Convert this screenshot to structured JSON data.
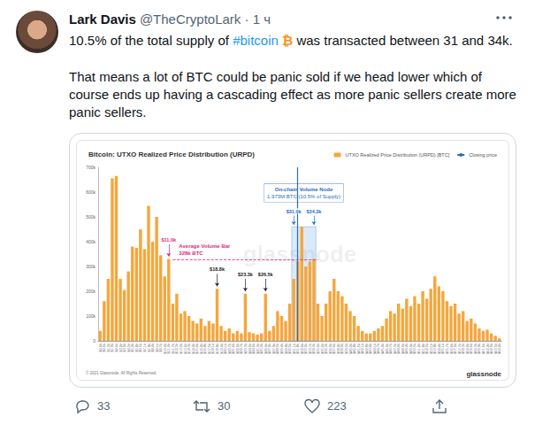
{
  "tweet": {
    "name": "Lark Davis",
    "meta": "@TheCryptoLark · 1 ч",
    "paragraphs": [
      "10.5% of the total supply of #bitcoin ₿ was transacted between 31 and 34k.",
      "That means a lot of BTC could be panic sold if we head lower which of course ends up having a cascading effect as more panic sellers create more panic sellers."
    ],
    "hashtag": "#bitcoin",
    "emoji": "₿",
    "replies": 33,
    "retweets": 30,
    "likes": 223
  },
  "chart_data": {
    "type": "bar",
    "title": "Bitcoin: UTXO Realized Price Distribution (URPD)",
    "categories": [
      "$0.0k",
      "$0.6k",
      "$1.3k",
      "$1.9k",
      "$2.6k",
      "$3.2k",
      "$3.9k",
      "$4.5k",
      "$5.2k",
      "$5.8k",
      "$6.5k",
      "$7.1k",
      "$7.8k",
      "$8.4k",
      "$9.1k",
      "$9.7k",
      "$10.4k",
      "$11.0k",
      "$11.7k",
      "$12.3k",
      "$13.0k",
      "$13.6k",
      "$14.3k",
      "$14.9k",
      "$15.6k",
      "$16.2k",
      "$16.8k",
      "$17.5k",
      "$18.1k",
      "$18.8k",
      "$19.4k",
      "$20.1k",
      "$20.7k",
      "$21.4k",
      "$22.0k",
      "$22.7k",
      "$23.3k",
      "$24.0k",
      "$24.6k",
      "$25.3k",
      "$25.9k",
      "$26.6k",
      "$27.2k",
      "$27.9k",
      "$28.5k",
      "$29.2k",
      "$29.8k",
      "$30.5k",
      "$31.1k",
      "$31.8k",
      "$32.4k",
      "$33.0k",
      "$33.7k",
      "$34.3k",
      "$35.0k",
      "$35.6k",
      "$36.3k",
      "$36.9k",
      "$37.6k",
      "$38.2k",
      "$38.9k",
      "$39.5k",
      "$40.2k",
      "$40.8k",
      "$41.5k",
      "$42.1k",
      "$42.8k",
      "$43.4k",
      "$44.1k",
      "$44.7k",
      "$45.4k",
      "$46.0k",
      "$46.7k",
      "$47.3k",
      "$48.0k",
      "$48.6k",
      "$49.2k",
      "$49.9k",
      "$50.5k",
      "$51.2k",
      "$51.8k",
      "$52.5k",
      "$53.1k",
      "$53.8k",
      "$54.4k",
      "$55.1k",
      "$55.7k",
      "$56.4k",
      "$57.0k",
      "$57.7k",
      "$58.3k",
      "$59.0k",
      "$59.6k",
      "$60.3k",
      "$60.9k",
      "$61.6k",
      "$62.2k",
      "$62.9k",
      "$63.5k",
      "$64.2k"
    ],
    "series": [
      {
        "name": "UTXO Realized Price Distribution (URPD) [BTC]",
        "color": "#f6a63c",
        "values": [
          40000,
          160000,
          250000,
          655000,
          665000,
          250000,
          205000,
          280000,
          380000,
          375000,
          450000,
          370000,
          545000,
          400000,
          500000,
          345000,
          260000,
          330000,
          150000,
          190000,
          110000,
          120000,
          100000,
          80000,
          70000,
          90000,
          60000,
          80000,
          70000,
          210000,
          60000,
          40000,
          50000,
          30000,
          40000,
          30000,
          190000,
          35000,
          30000,
          25000,
          30000,
          190000,
          40000,
          60000,
          120000,
          100000,
          80000,
          150000,
          250000,
          320000,
          460000,
          300000,
          320000,
          330000,
          150000,
          100000,
          150000,
          200000,
          250000,
          200000,
          180000,
          150000,
          120000,
          100000,
          60000,
          40000,
          30000,
          30000,
          40000,
          50000,
          60000,
          90000,
          120000,
          110000,
          150000,
          130000,
          170000,
          140000,
          180000,
          150000,
          200000,
          170000,
          210000,
          260000,
          220000,
          200000,
          160000,
          140000,
          150000,
          110000,
          120000,
          80000,
          90000,
          70000,
          50000,
          40000,
          45000,
          30000,
          20000,
          10000
        ]
      }
    ],
    "closing_price": {
      "name": "Closing price",
      "color": "#2c6fbb",
      "category": "$31.8k"
    },
    "ylim": [
      0,
      700000
    ],
    "yticks": [
      0,
      {
        "value": 100000,
        "label": "100k"
      },
      {
        "value": 200000,
        "label": "200k"
      },
      {
        "value": 300000,
        "label": "300k"
      },
      {
        "value": 400000,
        "label": "400k"
      },
      {
        "value": 500000,
        "label": "500k"
      },
      {
        "value": 600000,
        "label": "600k"
      },
      {
        "value": 700000,
        "label": "700k"
      }
    ],
    "grid": false,
    "legend": "top-right",
    "annotations": [
      {
        "label": "$11.0k",
        "category": "$11.0k",
        "color": "#e4267f"
      },
      {
        "label": "$18.8k",
        "category": "$18.8k",
        "color": "#222222"
      },
      {
        "label": "$23.3k",
        "category": "$23.3k",
        "color": "#222222"
      },
      {
        "label": "$26.5k",
        "category": "$26.6k",
        "color": "#222222"
      }
    ],
    "average": {
      "label": "Average Volume Bar",
      "value": 328000,
      "value_label": "328k BTC",
      "from": "$11.7k",
      "to": "$35.0k",
      "color": "#e4267f"
    },
    "node": {
      "title": "On-chain Volume Node",
      "subtitle": "1.973M BTC (10.5% of Supply)",
      "from": "$31.1k",
      "to": "$34.3k",
      "from_label": "$31.0k",
      "to_label": "$34.3k",
      "color": "#2c6fbb"
    },
    "watermark": "glassnode",
    "footer": "© 2021 Glassnode. All Rights Reserved.",
    "logo": "glassnode"
  }
}
